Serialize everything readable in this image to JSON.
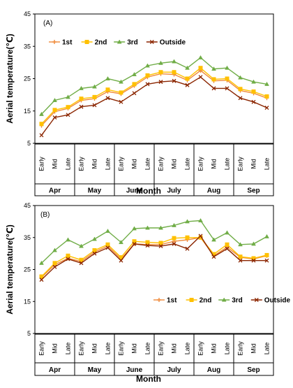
{
  "chart_data": [
    {
      "type": "line",
      "panel_label": "(A)",
      "ylabel": "Aerial temperature(℃)",
      "xlabel": "Month",
      "ylim": [
        5,
        45
      ],
      "yticks": [
        5,
        15,
        25,
        35,
        45
      ],
      "legend_position": "top-left",
      "categories": [
        "Early",
        "Mid",
        "Late",
        "Early",
        "Mid",
        "Late",
        "Early",
        "Mid",
        "Late",
        "Early",
        "Mid",
        "Late",
        "Early",
        "Mid",
        "Late",
        "Early",
        "Mid",
        "Late"
      ],
      "groups": [
        "Apr",
        "May",
        "June",
        "July",
        "Aug",
        "Sep"
      ],
      "series": [
        {
          "name": "1st",
          "color": "#f08a3a",
          "marker": "plus",
          "values": [
            10.5,
            14.8,
            15.8,
            18.3,
            18.8,
            21.0,
            20.3,
            22.8,
            25.5,
            26.5,
            26.3,
            24.5,
            27.5,
            24.3,
            24.5,
            21.3,
            20.5,
            19.0
          ]
        },
        {
          "name": "2nd",
          "color": "#ffc000",
          "marker": "square",
          "values": [
            11.0,
            15.3,
            16.2,
            18.8,
            19.3,
            21.6,
            20.7,
            23.3,
            26.0,
            27.0,
            27.0,
            25.0,
            28.3,
            24.8,
            25.0,
            21.8,
            21.0,
            19.5
          ]
        },
        {
          "name": "3rd",
          "color": "#70ad47",
          "marker": "triangle",
          "values": [
            14.0,
            18.3,
            19.3,
            22.0,
            22.5,
            25.0,
            24.0,
            26.3,
            29.0,
            29.8,
            30.3,
            28.3,
            31.5,
            28.0,
            28.3,
            25.3,
            24.0,
            23.3
          ]
        },
        {
          "name": "Outside",
          "color": "#8b2500",
          "marker": "x",
          "values": [
            7.5,
            13.0,
            13.8,
            16.3,
            16.8,
            19.0,
            17.8,
            20.5,
            23.3,
            24.0,
            24.3,
            23.0,
            25.5,
            22.0,
            22.0,
            19.0,
            17.8,
            16.0
          ]
        }
      ]
    },
    {
      "type": "line",
      "panel_label": "(B)",
      "ylabel": "Aerial temperature(℃)",
      "xlabel": "Month",
      "ylim": [
        5,
        45
      ],
      "yticks": [
        5,
        15,
        25,
        35,
        45
      ],
      "legend_position": "bottom-right",
      "categories": [
        "Early",
        "Mid",
        "Late",
        "Early",
        "Mid",
        "Late",
        "Early",
        "Mid",
        "Late",
        "Early",
        "Mid",
        "Late",
        "Early",
        "Mid",
        "Late",
        "Early",
        "Mid",
        "Late"
      ],
      "groups": [
        "Apr",
        "May",
        "June",
        "July",
        "Aug",
        "Sep"
      ],
      "series": [
        {
          "name": "1st",
          "color": "#f08a3a",
          "marker": "plus",
          "values": [
            22.5,
            26.5,
            28.5,
            27.5,
            30.5,
            32.3,
            28.3,
            33.0,
            32.8,
            32.8,
            33.8,
            34.3,
            35.0,
            29.3,
            32.0,
            28.8,
            28.3,
            29.3
          ]
        },
        {
          "name": "2nd",
          "color": "#ffc000",
          "marker": "square",
          "values": [
            22.8,
            27.0,
            29.3,
            28.0,
            31.0,
            32.8,
            28.8,
            33.8,
            33.5,
            33.3,
            34.8,
            35.0,
            35.0,
            29.8,
            32.8,
            29.0,
            28.5,
            29.5
          ]
        },
        {
          "name": "3rd",
          "color": "#70ad47",
          "marker": "triangle",
          "values": [
            27.0,
            31.0,
            34.3,
            32.3,
            34.5,
            37.0,
            33.5,
            37.8,
            38.0,
            38.0,
            38.8,
            40.0,
            40.3,
            34.3,
            36.5,
            32.8,
            33.0,
            35.3
          ]
        },
        {
          "name": "Outside",
          "color": "#8b2500",
          "marker": "x",
          "values": [
            21.8,
            25.8,
            28.3,
            27.0,
            30.0,
            31.8,
            27.8,
            33.0,
            32.5,
            32.3,
            33.0,
            31.5,
            35.5,
            29.0,
            31.5,
            27.8,
            27.8,
            27.8
          ]
        }
      ]
    }
  ]
}
